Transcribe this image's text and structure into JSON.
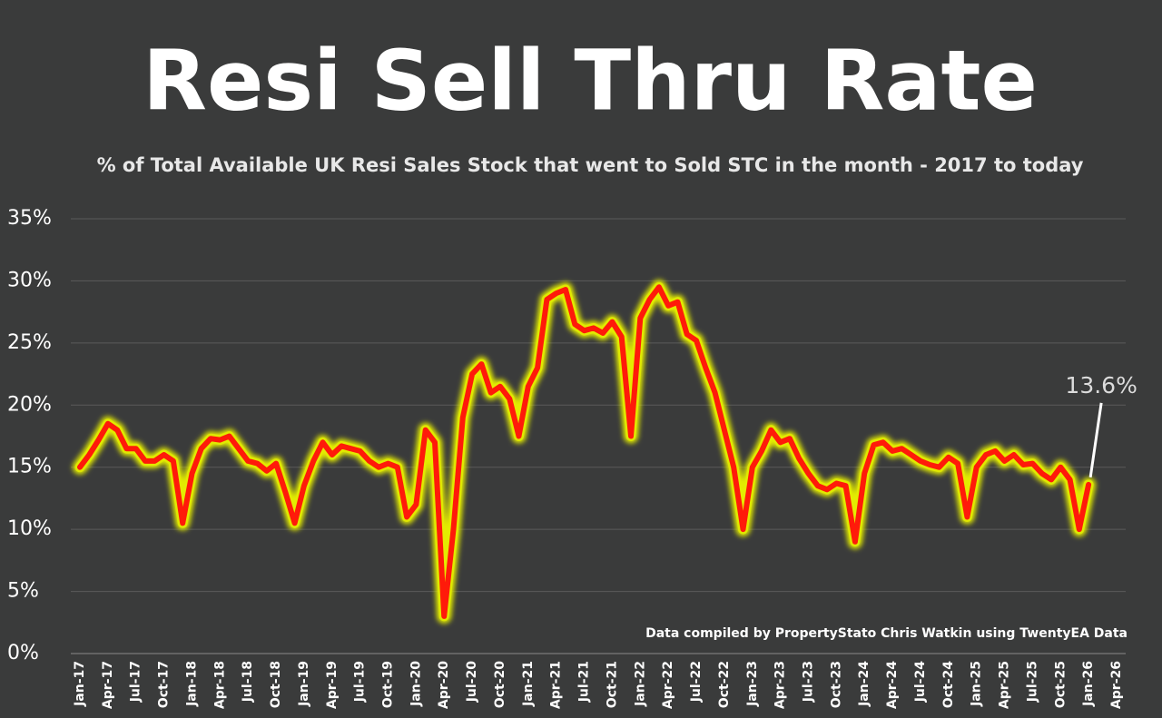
{
  "chart_data": {
    "type": "line",
    "title": "Resi Sell Thru Rate",
    "subtitle": "% of Total Available UK Resi Sales Stock that went to Sold STC in the month - 2017 to today",
    "source": "Data compiled by PropertyStato Chris Watkin using TwentyEA Data",
    "categories": [
      "Jan-17",
      null,
      null,
      "Apr-17",
      null,
      null,
      "Jul-17",
      null,
      null,
      "Oct-17",
      null,
      null,
      "Jan-18",
      null,
      null,
      "Apr-18",
      null,
      null,
      "Jul-18",
      null,
      null,
      "Oct-18",
      null,
      null,
      "Jan-19",
      null,
      null,
      "Apr-19",
      null,
      null,
      "Jul-19",
      null,
      null,
      "Oct-19",
      null,
      null,
      "Jan-20",
      null,
      null,
      "Apr-20",
      null,
      null,
      "Jul-20",
      null,
      null,
      "Oct-20",
      null,
      null,
      "Jan-21",
      null,
      null,
      "Apr-21",
      null,
      null,
      "Jul-21",
      null,
      null,
      "Oct-21",
      null,
      null,
      "Jan-22",
      null,
      null,
      "Apr-22",
      null,
      null,
      "Jul-22",
      null,
      null,
      "Oct-22",
      null,
      null,
      "Jan-23",
      null,
      null,
      "Apr-23",
      null,
      null,
      "Jul-23",
      null,
      null,
      "Oct-23",
      null,
      null,
      "Jan-24",
      null,
      null,
      "Apr-24",
      null,
      null,
      "Jul-24",
      null,
      null,
      "Oct-24",
      null,
      null,
      "Jan-25",
      null,
      null,
      "Apr-25",
      null,
      null,
      "Jul-25",
      null,
      null,
      "Oct-25",
      null,
      null,
      "Jan-26",
      null,
      null,
      "Apr-26"
    ],
    "series": [
      {
        "color": "#ff1a0a",
        "glow_color": "#e3ec00",
        "values": [
          15,
          16,
          17.2,
          18.5,
          18,
          16.5,
          16.5,
          15.5,
          15.5,
          16,
          15.5,
          10.5,
          14.5,
          16.5,
          17.3,
          17.2,
          17.5,
          16.5,
          15.5,
          15.3,
          14.7,
          15.3,
          13,
          10.5,
          13.5,
          15.5,
          17,
          16,
          16.7,
          16.5,
          16.3,
          15.5,
          15,
          15.3,
          15,
          11,
          12,
          18,
          17,
          3,
          10,
          19,
          22.5,
          23.3,
          21,
          21.5,
          20.5,
          17.5,
          21.5,
          23,
          28.5,
          29,
          29.3,
          26.5,
          26,
          26.2,
          25.8,
          26.7,
          25.5,
          17.5,
          27,
          28.5,
          29.5,
          28,
          28.3,
          25.7,
          25.2,
          23,
          21,
          18,
          15,
          10,
          15,
          16.3,
          18,
          17,
          17.3,
          15.7,
          14.5,
          13.5,
          13.2,
          13.7,
          13.5,
          9,
          14.5,
          16.8,
          17,
          16.3,
          16.5,
          16,
          15.5,
          15.2,
          15,
          15.8,
          15.3,
          11,
          15,
          16,
          16.3,
          15.5,
          16,
          15.2,
          15.3,
          14.5,
          14,
          15,
          14,
          10,
          13.6,
          null,
          null,
          null
        ],
        "value_labels": [
          null,
          null,
          null,
          null,
          null,
          null,
          null,
          null,
          null,
          null,
          null,
          null,
          null,
          null,
          null,
          null,
          null,
          null,
          null,
          null,
          null,
          null,
          null,
          null,
          null,
          null,
          null,
          null,
          null,
          null,
          null,
          null,
          null,
          null,
          null,
          null,
          null,
          null,
          null,
          null,
          null,
          null,
          null,
          null,
          null,
          null,
          null,
          null,
          null,
          null,
          null,
          null,
          null,
          null,
          null,
          null,
          null,
          null,
          null,
          null,
          null,
          null,
          null,
          null,
          null,
          null,
          null,
          null,
          null,
          null,
          null,
          null,
          null,
          null,
          null,
          null,
          null,
          null,
          null,
          null,
          null,
          null,
          null,
          null,
          null,
          null,
          null,
          null,
          null,
          null,
          null,
          null,
          null,
          null,
          null,
          null,
          null,
          null,
          null,
          null,
          null,
          null,
          null,
          null,
          null,
          null,
          null,
          null,
          "13.6%",
          null,
          null,
          null
        ]
      }
    ],
    "ylim": [
      0,
      35
    ],
    "yticks": [
      {
        "value": 0,
        "label": "0%"
      },
      {
        "value": 5,
        "label": "5%"
      },
      {
        "value": 10,
        "label": "10%"
      },
      {
        "value": 15,
        "label": "15%"
      },
      {
        "value": 20,
        "label": "20%"
      },
      {
        "value": 25,
        "label": "25%"
      },
      {
        "value": 30,
        "label": "30%"
      },
      {
        "value": 35,
        "label": "35%"
      }
    ],
    "grid": true
  }
}
